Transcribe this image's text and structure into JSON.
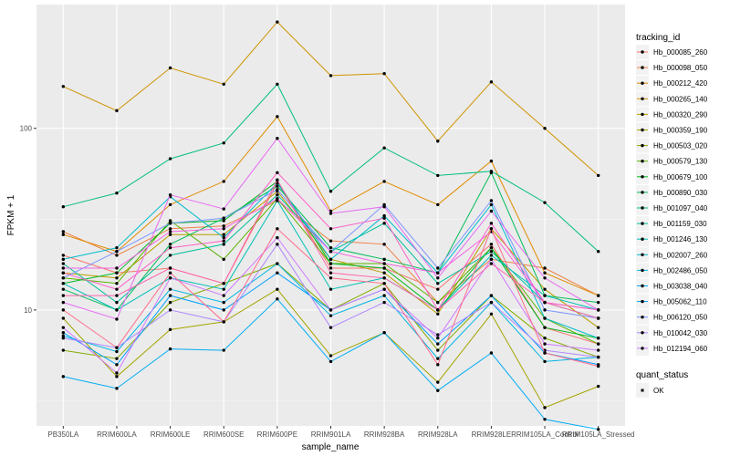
{
  "chart_data": {
    "type": "line",
    "xlabel": "sample_name",
    "ylabel": "FPKM + 1",
    "y_scale": "log10",
    "ylim": [
      2.3,
      480
    ],
    "y_ticks": [
      10,
      100
    ],
    "y_tick_labels": [
      "10",
      "100"
    ],
    "grid": true,
    "legend_position": "right",
    "categories": [
      "PB350LA",
      "RRIM600LA",
      "RRIM600LE",
      "RRIM600SE",
      "RRIM600PE",
      "RRIM901LA",
      "RRIM928BA",
      "RRIM928LA",
      "RRIM928LE",
      "RRIM105LA_Control",
      "RRIM105LA_Stressed"
    ],
    "legend_title": "tracking_id",
    "series": [
      {
        "name": "Hb_000085_260",
        "color": "#F8766D",
        "values": [
          20,
          16,
          17,
          14,
          50,
          17,
          17,
          13,
          23,
          8,
          6.5
        ]
      },
      {
        "name": "Hb_000098_050",
        "color": "#EE8045",
        "values": [
          27,
          20,
          28,
          29,
          40,
          24,
          23,
          11,
          19,
          17,
          12
        ]
      },
      {
        "name": "Hb_000212_420",
        "color": "#E08B00",
        "values": [
          26,
          21,
          38,
          51,
          116,
          35,
          51,
          38,
          66,
          16,
          12
        ]
      },
      {
        "name": "Hb_000265_140",
        "color": "#CF9400",
        "values": [
          170,
          125,
          215,
          175,
          385,
          195,
          200,
          85,
          180,
          100,
          55
        ]
      },
      {
        "name": "Hb_000320_290",
        "color": "#BB9D00",
        "values": [
          16,
          15,
          26,
          26,
          45,
          19,
          16,
          9.5,
          28,
          13,
          8
        ]
      },
      {
        "name": "Hb_000359_190",
        "color": "#A3A500",
        "values": [
          9,
          4.3,
          7.8,
          8.6,
          13,
          5.6,
          7.5,
          4,
          9.5,
          2.9,
          3.8
        ]
      },
      {
        "name": "Hb_000503_020",
        "color": "#85AD00",
        "values": [
          6,
          5.4,
          11,
          14,
          18,
          10,
          14,
          6,
          12,
          7,
          5.5
        ]
      },
      {
        "name": "Hb_000579_130",
        "color": "#5BB300",
        "values": [
          15,
          14,
          31,
          19,
          41,
          18,
          18,
          11,
          22,
          9,
          6.5
        ]
      },
      {
        "name": "Hb_000679_100",
        "color": "#00B81F",
        "values": [
          14,
          16,
          30,
          31,
          51,
          18,
          17,
          10,
          22,
          8,
          7
        ]
      },
      {
        "name": "Hb_000890_030",
        "color": "#00BC59",
        "values": [
          13,
          10,
          23,
          32,
          48,
          22,
          19,
          16,
          57,
          12,
          11
        ]
      },
      {
        "name": "Hb_001097_040",
        "color": "#00BE7D",
        "values": [
          37,
          44,
          68,
          83,
          175,
          45,
          78,
          55,
          58,
          39,
          21
        ]
      },
      {
        "name": "Hb_001159_030",
        "color": "#00C09B",
        "values": [
          18,
          11,
          20,
          23,
          43,
          21,
          30,
          14,
          21,
          11,
          9
        ]
      },
      {
        "name": "Hb_001246_130",
        "color": "#00BFB6",
        "values": [
          14,
          10,
          15,
          13,
          40,
          13,
          15,
          10,
          20,
          12,
          10
        ]
      },
      {
        "name": "Hb_002007_260",
        "color": "#00BCCE",
        "values": [
          19,
          22,
          42,
          25,
          50,
          19,
          33,
          16,
          38,
          9,
          7
        ]
      },
      {
        "name": "Hb_002486_050",
        "color": "#00B5E2",
        "values": [
          7.2,
          5.9,
          13,
          11,
          18,
          9.3,
          12,
          5.4,
          11,
          5.2,
          5.5
        ]
      },
      {
        "name": "Hb_003038_040",
        "color": "#00ACF3",
        "values": [
          4.3,
          3.7,
          6.1,
          6,
          11.5,
          5.2,
          7.5,
          3.6,
          5.8,
          2.5,
          2.2
        ]
      },
      {
        "name": "Hb_005062_110",
        "color": "#00A1FF",
        "values": [
          7.5,
          5,
          12,
          10,
          16,
          10,
          13,
          6.5,
          12,
          5.8,
          5
        ]
      },
      {
        "name": "Hb_006120_050",
        "color": "#7C95FF",
        "values": [
          15,
          21,
          30,
          32,
          46,
          21,
          38,
          17,
          40,
          10,
          9
        ]
      },
      {
        "name": "Hb_010042_030",
        "color": "#AF88FF",
        "values": [
          7,
          6.2,
          10,
          8.6,
          23,
          8,
          11,
          7.3,
          11,
          6,
          5.5
        ]
      },
      {
        "name": "Hb_012194_060",
        "color": "#D179FF",
        "values": [
          8,
          4.5,
          15,
          12,
          25,
          10,
          13,
          7,
          19,
          6.5,
          6
        ]
      },
      {
        "name": "",
        "color": "#E76BF3",
        "values": [
          11,
          8.9,
          43,
          36,
          88,
          34,
          37,
          15,
          35,
          15,
          10
        ]
      },
      {
        "name": "",
        "color": "#F564E3",
        "values": [
          17,
          17,
          27,
          28,
          41,
          21,
          18,
          16,
          27,
          11,
          10
        ]
      },
      {
        "name": "",
        "color": "#FF61C9",
        "values": [
          16,
          13,
          22,
          24,
          57,
          28,
          32,
          10,
          30,
          11,
          10
        ]
      },
      {
        "name": "",
        "color": "#FF64AC",
        "values": [
          12,
          12,
          17,
          14,
          52,
          16,
          15,
          10,
          18,
          11,
          9
        ]
      },
      {
        "name": "",
        "color": "#FF6C8C",
        "values": [
          10,
          6.2,
          16,
          8.6,
          28,
          15,
          14,
          5,
          28,
          5.8,
          4.9
        ]
      }
    ],
    "shape_legend_title": "quant_status",
    "shape_legend_entries": [
      "OK"
    ]
  }
}
